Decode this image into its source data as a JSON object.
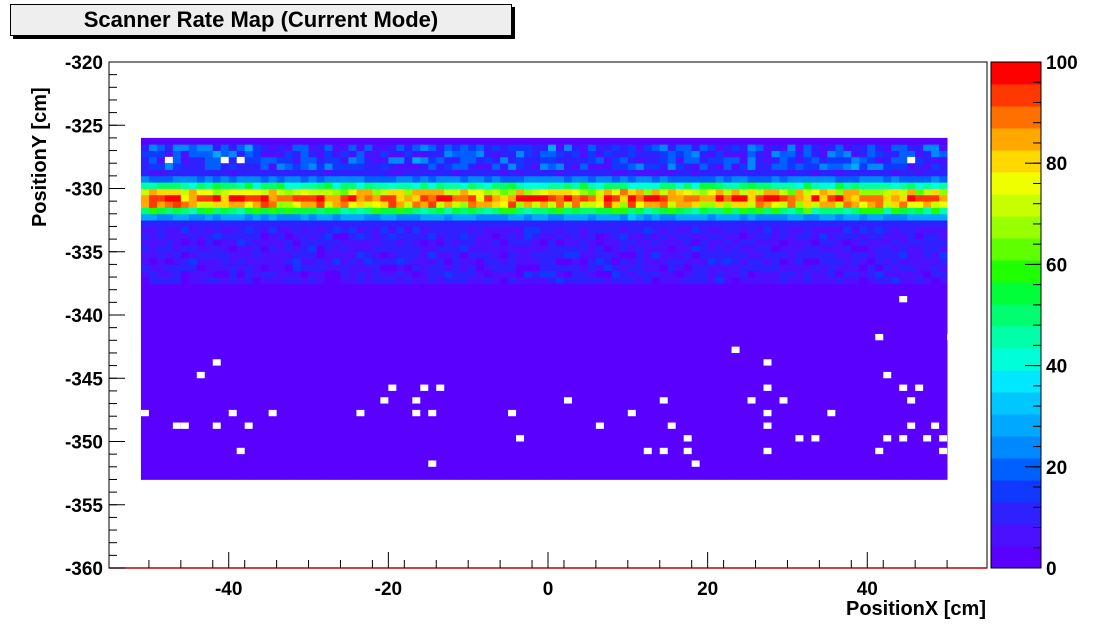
{
  "chart_data": {
    "type": "heatmap",
    "title": "Scanner Rate Map (Current Mode)",
    "xlabel": "PositionX [cm]",
    "ylabel": "PositionY [cm]",
    "xlim": [
      -55,
      55
    ],
    "ylim": [
      -360,
      -320
    ],
    "x_ticks": [
      -40,
      -20,
      0,
      20,
      40
    ],
    "y_ticks": [
      -320,
      -325,
      -330,
      -335,
      -340,
      -345,
      -350,
      -355,
      -360
    ],
    "z_range": [
      0,
      100
    ],
    "z_ticks": [
      0,
      20,
      40,
      60,
      80,
      100
    ],
    "palette": [
      "#5a00ff",
      "#4b10ff",
      "#2e20ff",
      "#1038ff",
      "#0060ff",
      "#0088ff",
      "#00a8ff",
      "#00c8ff",
      "#00e8ff",
      "#00ffd8",
      "#00ffa8",
      "#00ff70",
      "#00ff38",
      "#20ff00",
      "#60ff00",
      "#98ff00",
      "#c8ff00",
      "#f0ff00",
      "#ffd800",
      "#ffa800",
      "#ff7000",
      "#ff3800",
      "#ff0000"
    ],
    "data_bins": {
      "x_range": [
        -51,
        50
      ],
      "y_range": [
        -353,
        -326
      ],
      "bin_width_x": 1,
      "bin_height_y": 1,
      "band_center_y": -330.8,
      "band_peak_value": 88,
      "background_value": 3,
      "empty_cells": [
        [
          -48,
          -327.5
        ],
        [
          -41,
          -327.5
        ],
        [
          -39,
          -327.5
        ],
        [
          45,
          -327.5
        ],
        [
          44,
          -338.5
        ],
        [
          41,
          -341.5
        ],
        [
          50,
          -341.5
        ],
        [
          23,
          -342.5
        ],
        [
          -42,
          -343.5
        ],
        [
          27,
          -343.5
        ],
        [
          -44,
          -344.5
        ],
        [
          42,
          -344.5
        ],
        [
          -20,
          -345.5
        ],
        [
          -16,
          -345.5
        ],
        [
          -14,
          -345.5
        ],
        [
          27,
          -345.5
        ],
        [
          44,
          -345.5
        ],
        [
          46,
          -345.5
        ],
        [
          -21,
          -346.5
        ],
        [
          -17,
          -346.5
        ],
        [
          2,
          -346.5
        ],
        [
          14,
          -346.5
        ],
        [
          25,
          -346.5
        ],
        [
          29,
          -346.5
        ],
        [
          45,
          -346.5
        ],
        [
          -51,
          -347.5
        ],
        [
          -40,
          -347.5
        ],
        [
          -35,
          -347.5
        ],
        [
          -24,
          -347.5
        ],
        [
          -17,
          -347.5
        ],
        [
          -15,
          -347.5
        ],
        [
          -5,
          -347.5
        ],
        [
          10,
          -347.5
        ],
        [
          27,
          -347.5
        ],
        [
          35,
          -347.5
        ],
        [
          -46,
          -348.5
        ],
        [
          -47,
          -348.5
        ],
        [
          -42,
          -348.5
        ],
        [
          -38,
          -348.5
        ],
        [
          6,
          -348.5
        ],
        [
          15,
          -348.5
        ],
        [
          27,
          -348.5
        ],
        [
          45,
          -348.5
        ],
        [
          48,
          -348.5
        ],
        [
          -4,
          -349.5
        ],
        [
          17,
          -349.5
        ],
        [
          31,
          -349.5
        ],
        [
          33,
          -349.5
        ],
        [
          42,
          -349.5
        ],
        [
          44,
          -349.5
        ],
        [
          47,
          -349.5
        ],
        [
          49,
          -349.5
        ],
        [
          -39,
          -350.5
        ],
        [
          12,
          -350.5
        ],
        [
          14,
          -350.5
        ],
        [
          17,
          -350.5
        ],
        [
          27,
          -350.5
        ],
        [
          41,
          -350.5
        ],
        [
          49,
          -350.5
        ],
        [
          -15,
          -351.5
        ],
        [
          18,
          -351.5
        ]
      ]
    }
  }
}
